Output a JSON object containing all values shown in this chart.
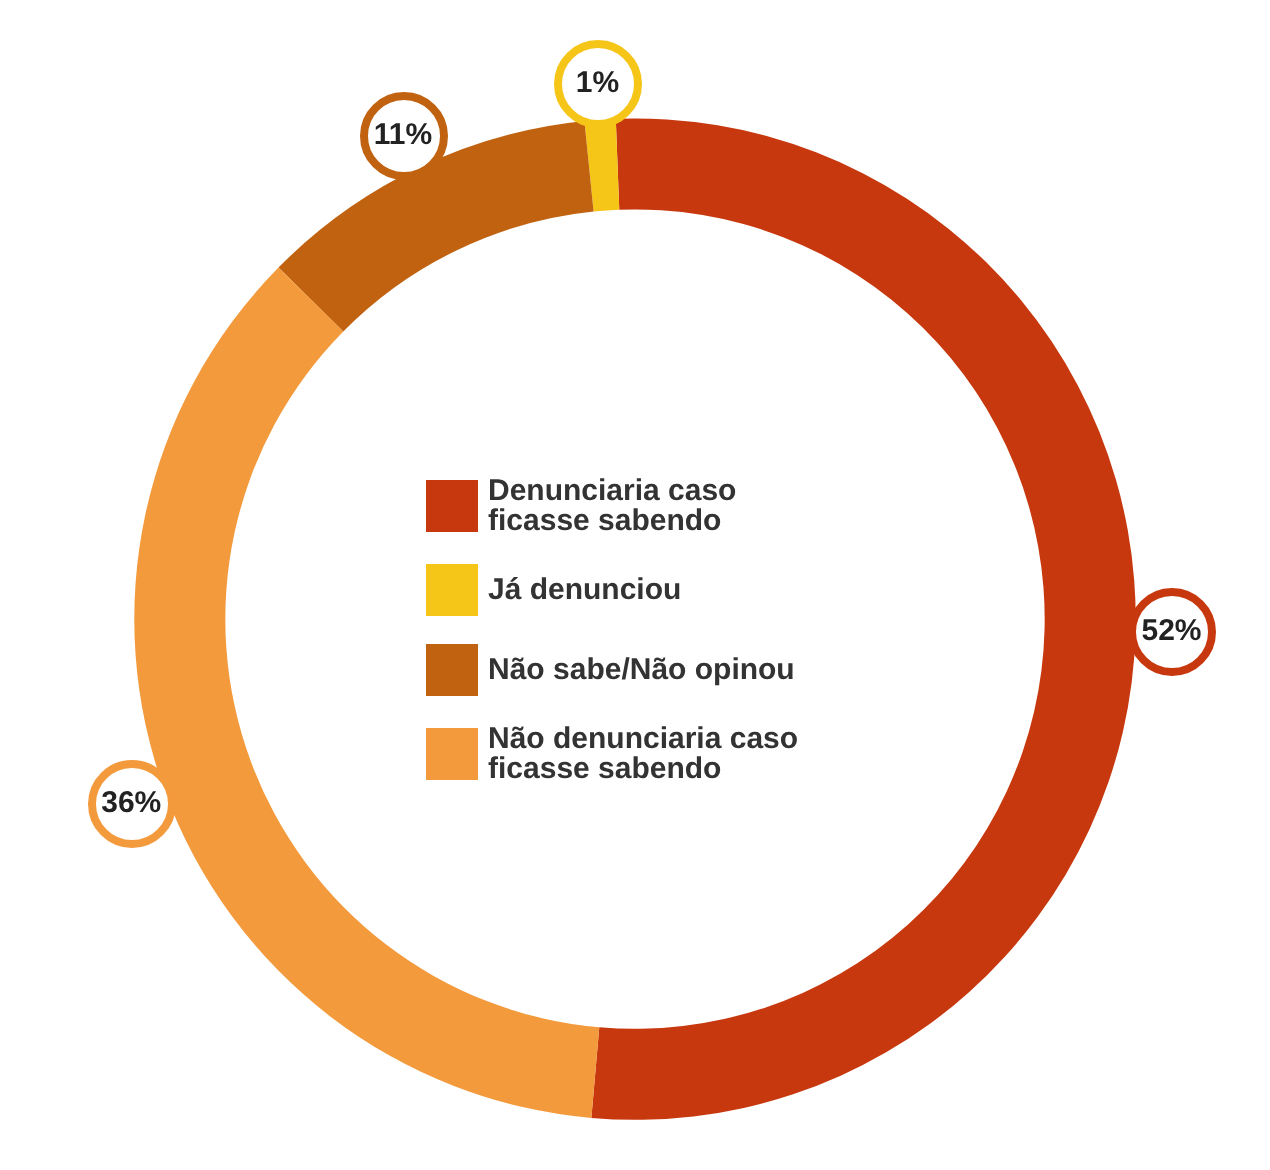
{
  "chart_data": {
    "type": "donut",
    "categories": [
      "Denunciaria caso ficasse sabendo",
      "Já denunciou",
      "Não sabe/Não opinou",
      "Não denunciaria caso ficasse sabendo"
    ],
    "values": [
      52,
      1,
      11,
      36
    ],
    "colors": [
      "#c8380e",
      "#f5c518",
      "#c0620f",
      "#f39a3c"
    ],
    "value_labels": [
      "52%",
      "1%",
      "11%",
      "36%"
    ],
    "legend": "center"
  }
}
